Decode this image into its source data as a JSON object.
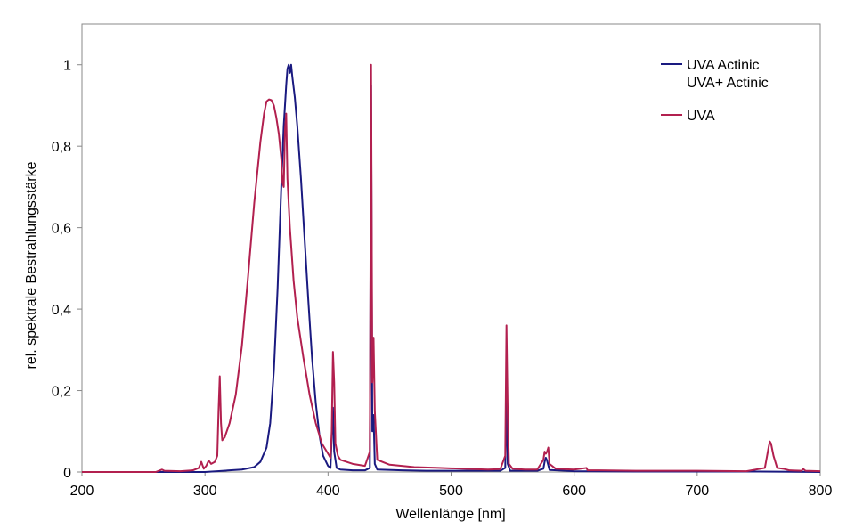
{
  "chart_data": {
    "type": "line",
    "xlabel": "Wellenlänge [nm]",
    "ylabel": "rel. spektrale Bestrahlungsstärke",
    "xlim": [
      200,
      800
    ],
    "ylim": [
      0,
      1.1
    ],
    "xticks": [
      200,
      300,
      400,
      500,
      600,
      700,
      800
    ],
    "yticks": [
      0,
      0.2,
      0.4,
      0.6,
      0.8,
      1
    ],
    "ytick_labels": [
      "0",
      "0,2",
      "0,4",
      "0,6",
      "0,8",
      "1"
    ],
    "grid": false,
    "legend_position": "top-right",
    "series": [
      {
        "name": "UVA Actinic",
        "name_line2": "UVA+ Actinic",
        "color": "#1a1a80",
        "points": [
          [
            200,
            0
          ],
          [
            300,
            0
          ],
          [
            310,
            0.002
          ],
          [
            320,
            0.004
          ],
          [
            330,
            0.006
          ],
          [
            340,
            0.012
          ],
          [
            345,
            0.025
          ],
          [
            350,
            0.06
          ],
          [
            353,
            0.12
          ],
          [
            356,
            0.25
          ],
          [
            359,
            0.45
          ],
          [
            362,
            0.7
          ],
          [
            364,
            0.85
          ],
          [
            366,
            0.95
          ],
          [
            367,
            0.99
          ],
          [
            368,
            1.0
          ],
          [
            369,
            0.98
          ],
          [
            370,
            1.0
          ],
          [
            371,
            0.97
          ],
          [
            373,
            0.92
          ],
          [
            375,
            0.85
          ],
          [
            378,
            0.72
          ],
          [
            381,
            0.57
          ],
          [
            384,
            0.42
          ],
          [
            387,
            0.28
          ],
          [
            390,
            0.17
          ],
          [
            393,
            0.09
          ],
          [
            396,
            0.04
          ],
          [
            400,
            0.015
          ],
          [
            402,
            0.01
          ],
          [
            404,
            0.158
          ],
          [
            405,
            0.05
          ],
          [
            407,
            0.01
          ],
          [
            410,
            0.006
          ],
          [
            420,
            0.004
          ],
          [
            430,
            0.004
          ],
          [
            434,
            0.01
          ],
          [
            435,
            0.95
          ],
          [
            436,
            0.1
          ],
          [
            437,
            0.14
          ],
          [
            438,
            0.02
          ],
          [
            440,
            0.006
          ],
          [
            460,
            0.004
          ],
          [
            480,
            0.003
          ],
          [
            500,
            0.003
          ],
          [
            520,
            0.003
          ],
          [
            540,
            0.003
          ],
          [
            544,
            0.01
          ],
          [
            545,
            0.195
          ],
          [
            546,
            0.02
          ],
          [
            548,
            0.003
          ],
          [
            570,
            0.003
          ],
          [
            575,
            0.008
          ],
          [
            576,
            0.025
          ],
          [
            577,
            0.035
          ],
          [
            578,
            0.028
          ],
          [
            580,
            0.005
          ],
          [
            600,
            0.002
          ],
          [
            650,
            0.001
          ],
          [
            700,
            0.001
          ],
          [
            750,
            0.001
          ],
          [
            800,
            0
          ]
        ]
      },
      {
        "name": "UVA",
        "color": "#b2204f",
        "points": [
          [
            200,
            0
          ],
          [
            260,
            0
          ],
          [
            265,
            0.006
          ],
          [
            267,
            0.003
          ],
          [
            280,
            0.002
          ],
          [
            290,
            0.004
          ],
          [
            295,
            0.01
          ],
          [
            297,
            0.025
          ],
          [
            299,
            0.008
          ],
          [
            301,
            0.015
          ],
          [
            303,
            0.028
          ],
          [
            305,
            0.02
          ],
          [
            308,
            0.025
          ],
          [
            310,
            0.04
          ],
          [
            311,
            0.15
          ],
          [
            312,
            0.235
          ],
          [
            313,
            0.12
          ],
          [
            314,
            0.078
          ],
          [
            316,
            0.085
          ],
          [
            320,
            0.12
          ],
          [
            325,
            0.19
          ],
          [
            330,
            0.31
          ],
          [
            335,
            0.48
          ],
          [
            340,
            0.66
          ],
          [
            345,
            0.81
          ],
          [
            348,
            0.88
          ],
          [
            350,
            0.91
          ],
          [
            352,
            0.915
          ],
          [
            354,
            0.913
          ],
          [
            356,
            0.9
          ],
          [
            358,
            0.87
          ],
          [
            360,
            0.83
          ],
          [
            362,
            0.77
          ],
          [
            363,
            0.71
          ],
          [
            364,
            0.7
          ],
          [
            365,
            0.84
          ],
          [
            366,
            0.88
          ],
          [
            367,
            0.72
          ],
          [
            369,
            0.6
          ],
          [
            372,
            0.47
          ],
          [
            375,
            0.38
          ],
          [
            380,
            0.28
          ],
          [
            385,
            0.19
          ],
          [
            390,
            0.12
          ],
          [
            395,
            0.07
          ],
          [
            400,
            0.045
          ],
          [
            402,
            0.035
          ],
          [
            403,
            0.1
          ],
          [
            404,
            0.295
          ],
          [
            405,
            0.22
          ],
          [
            406,
            0.07
          ],
          [
            408,
            0.04
          ],
          [
            410,
            0.03
          ],
          [
            415,
            0.025
          ],
          [
            420,
            0.02
          ],
          [
            430,
            0.015
          ],
          [
            434,
            0.05
          ],
          [
            435,
            1.0
          ],
          [
            436,
            0.22
          ],
          [
            437,
            0.33
          ],
          [
            438,
            0.15
          ],
          [
            440,
            0.03
          ],
          [
            450,
            0.018
          ],
          [
            470,
            0.012
          ],
          [
            490,
            0.01
          ],
          [
            510,
            0.008
          ],
          [
            530,
            0.006
          ],
          [
            540,
            0.007
          ],
          [
            544,
            0.04
          ],
          [
            545,
            0.36
          ],
          [
            546,
            0.15
          ],
          [
            547,
            0.02
          ],
          [
            550,
            0.008
          ],
          [
            560,
            0.006
          ],
          [
            570,
            0.006
          ],
          [
            575,
            0.03
          ],
          [
            576,
            0.05
          ],
          [
            577,
            0.045
          ],
          [
            578,
            0.05
          ],
          [
            579,
            0.06
          ],
          [
            580,
            0.02
          ],
          [
            585,
            0.008
          ],
          [
            600,
            0.006
          ],
          [
            610,
            0.01
          ],
          [
            611,
            0.004
          ],
          [
            620,
            0.004
          ],
          [
            650,
            0.003
          ],
          [
            700,
            0.003
          ],
          [
            740,
            0.002
          ],
          [
            755,
            0.01
          ],
          [
            758,
            0.06
          ],
          [
            759,
            0.075
          ],
          [
            760,
            0.07
          ],
          [
            762,
            0.04
          ],
          [
            765,
            0.01
          ],
          [
            770,
            0.008
          ],
          [
            775,
            0.004
          ],
          [
            785,
            0.003
          ],
          [
            786,
            0.008
          ],
          [
            788,
            0.003
          ],
          [
            800,
            0.002
          ]
        ]
      }
    ]
  }
}
